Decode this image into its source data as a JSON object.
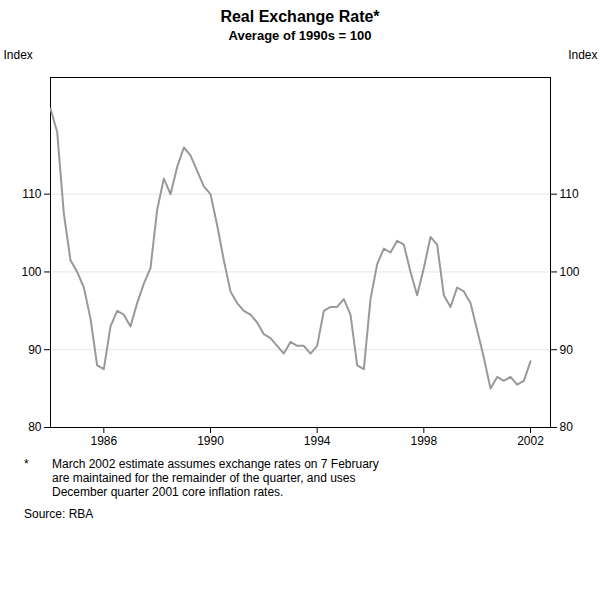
{
  "chart_data": {
    "type": "line",
    "title": "Real Exchange Rate*",
    "subtitle": "Average of 1990s = 100",
    "ylabel": "Index",
    "y2label": "Index",
    "annotations": [
      "*",
      "March 2002 estimate assumes exchange rates on 7 February\nare maintained for the remainder of the quarter, and uses\nDecember quarter 2001 core inflation rates.",
      "Source: RBA"
    ],
    "color": "#999999",
    "grid": true,
    "xlim": [
      1984.0,
      2002.75
    ],
    "xticks": [
      1986,
      1990,
      1994,
      1998,
      2002
    ],
    "ylim": [
      80,
      125
    ],
    "yticks": [
      80,
      90,
      100,
      110
    ],
    "y2lim": [
      80,
      125
    ],
    "y2ticks": [
      80,
      90,
      100,
      110
    ],
    "x": [
      1984.0,
      1984.25,
      1984.5,
      1984.75,
      1985.0,
      1985.25,
      1985.5,
      1985.75,
      1986.0,
      1986.25,
      1986.5,
      1986.75,
      1987.0,
      1987.25,
      1987.5,
      1987.75,
      1988.0,
      1988.25,
      1988.5,
      1988.75,
      1989.0,
      1989.25,
      1989.5,
      1989.75,
      1990.0,
      1990.25,
      1990.5,
      1990.75,
      1991.0,
      1991.25,
      1991.5,
      1991.75,
      1992.0,
      1992.25,
      1992.5,
      1992.75,
      1993.0,
      1993.25,
      1993.5,
      1993.75,
      1994.0,
      1994.25,
      1994.5,
      1994.75,
      1995.0,
      1995.25,
      1995.5,
      1995.75,
      1996.0,
      1996.25,
      1996.5,
      1996.75,
      1997.0,
      1997.25,
      1997.5,
      1997.75,
      1998.0,
      1998.25,
      1998.5,
      1998.75,
      1999.0,
      1999.25,
      1999.5,
      1999.75,
      2000.0,
      2000.25,
      2000.5,
      2000.75,
      2001.0,
      2001.25,
      2001.5,
      2001.75,
      2002.0
    ],
    "values": [
      121.0,
      118.0,
      107.5,
      101.5,
      100.0,
      98.0,
      94.0,
      88.0,
      87.5,
      93.0,
      95.0,
      94.5,
      93.0,
      96.0,
      98.5,
      100.5,
      108.0,
      112.0,
      110.0,
      113.5,
      116.0,
      115.0,
      113.0,
      111.0,
      110.0,
      106.0,
      101.5,
      97.5,
      96.0,
      95.0,
      94.5,
      93.5,
      92.0,
      91.5,
      90.5,
      89.5,
      91.0,
      90.5,
      90.5,
      89.5,
      90.5,
      95.0,
      95.5,
      95.5,
      96.5,
      94.5,
      88.0,
      87.5,
      96.5,
      101.0,
      103.0,
      102.5,
      104.0,
      103.5,
      100.0,
      97.0,
      100.5,
      104.5,
      103.5,
      97.0,
      95.5,
      98.0,
      97.5,
      96.0,
      92.5,
      89.0,
      85.0,
      86.5,
      86.0,
      86.5,
      85.5,
      86.0,
      88.5
    ]
  }
}
